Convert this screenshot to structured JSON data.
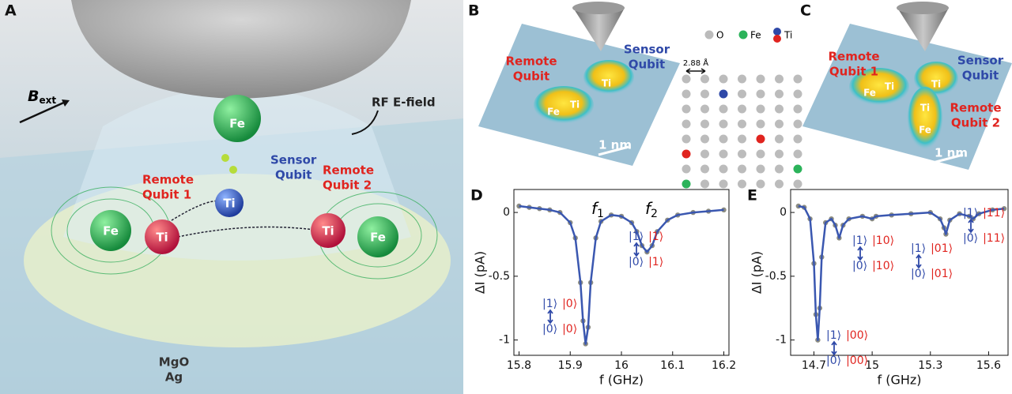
{
  "panel_a": {
    "label": "A",
    "b_ext": {
      "main": "B",
      "sub": "ext"
    },
    "rf": "RF E-field",
    "fe_top": "Fe",
    "sensor": [
      "Sensor",
      "Qubit"
    ],
    "sensor_atom": "Ti",
    "remote1": [
      "Remote",
      "Qubit 1"
    ],
    "remote2": [
      "Remote",
      "Qubit 2"
    ],
    "atoms": [
      "Fe",
      "Ti",
      "Ti",
      "Fe"
    ],
    "substrate": [
      "MgO",
      "Ag"
    ]
  },
  "panel_b": {
    "label": "B",
    "remote": [
      "Remote",
      "Qubit"
    ],
    "sensor": [
      "Sensor",
      "Qubit"
    ],
    "atoms": [
      "Fe",
      "Ti",
      "Ti"
    ],
    "scale": "1 nm"
  },
  "lattice": {
    "legend": [
      "O",
      "Fe",
      "Ti"
    ],
    "spacing": "2.88 Å"
  },
  "panel_c": {
    "label": "C",
    "remote1": [
      "Remote",
      "Qubit 1"
    ],
    "sensor": [
      "Sensor",
      "Qubit"
    ],
    "remote2": [
      "Remote",
      "Qubit 2"
    ],
    "atoms": [
      "Fe",
      "Ti",
      "Ti",
      "Ti",
      "Fe"
    ],
    "scale": "1 nm"
  },
  "chart_data": [
    {
      "type": "line",
      "label": "D",
      "xlabel": "f (GHz)",
      "ylabel": "ΔI (pA)",
      "color": "#3a57b0",
      "marker_color": "#8c8c82",
      "x": [
        15.8,
        15.82,
        15.84,
        15.86,
        15.88,
        15.9,
        15.91,
        15.92,
        15.925,
        15.93,
        15.935,
        15.94,
        15.95,
        15.96,
        15.98,
        16.0,
        16.02,
        16.03,
        16.04,
        16.05,
        16.06,
        16.07,
        16.09,
        16.11,
        16.14,
        16.17,
        16.2
      ],
      "values": [
        0.05,
        0.04,
        0.03,
        0.02,
        0.0,
        -0.08,
        -0.2,
        -0.55,
        -0.85,
        -1.03,
        -0.9,
        -0.55,
        -0.2,
        -0.07,
        -0.02,
        -0.03,
        -0.08,
        -0.15,
        -0.26,
        -0.31,
        -0.26,
        -0.15,
        -0.06,
        -0.02,
        0.0,
        0.01,
        0.02
      ],
      "xlim": [
        15.79,
        16.21
      ],
      "ylim": [
        -1.12,
        0.18
      ],
      "xticks": [
        15.8,
        15.9,
        16,
        16.1,
        16.2
      ],
      "yticks": [
        0,
        -0.5,
        -1
      ],
      "peak_labels": [
        {
          "main": "f",
          "sub": "1"
        },
        {
          "main": "f",
          "sub": "2"
        }
      ],
      "annotations": [
        {
          "top": [
            "|1⟩",
            "|0⟩"
          ],
          "bottom": [
            "|0⟩",
            "|0⟩"
          ]
        },
        {
          "top": [
            "|1⟩",
            "|1⟩"
          ],
          "bottom": [
            "|0⟩",
            "|1⟩"
          ]
        }
      ]
    },
    {
      "type": "line",
      "label": "E",
      "xlabel": "f (GHz)",
      "ylabel": "ΔI (pA)",
      "color": "#3a57b0",
      "marker_color": "#8c8c82",
      "x": [
        14.62,
        14.65,
        14.68,
        14.7,
        14.71,
        14.72,
        14.73,
        14.74,
        14.76,
        14.79,
        14.81,
        14.83,
        14.85,
        14.88,
        14.95,
        15.0,
        15.02,
        15.1,
        15.2,
        15.3,
        15.35,
        15.37,
        15.38,
        15.4,
        15.45,
        15.5,
        15.52,
        15.55,
        15.62,
        15.68
      ],
      "values": [
        0.05,
        0.04,
        -0.05,
        -0.4,
        -0.8,
        -1.0,
        -0.75,
        -0.35,
        -0.08,
        -0.05,
        -0.1,
        -0.2,
        -0.1,
        -0.05,
        -0.03,
        -0.05,
        -0.03,
        -0.02,
        -0.01,
        0.0,
        -0.05,
        -0.12,
        -0.17,
        -0.06,
        -0.01,
        -0.03,
        -0.05,
        -0.01,
        0.02,
        0.03
      ],
      "xlim": [
        14.58,
        15.7
      ],
      "ylim": [
        -1.12,
        0.18
      ],
      "xticks": [
        14.7,
        15,
        15.3,
        15.6
      ],
      "yticks": [
        0,
        -0.5,
        -1
      ],
      "annotations": [
        {
          "top": [
            "|1⟩",
            "|00⟩"
          ],
          "bottom": [
            "|0⟩",
            "|00⟩"
          ]
        },
        {
          "top": [
            "|1⟩",
            "|10⟩"
          ],
          "bottom": [
            "|0⟩",
            "|10⟩"
          ]
        },
        {
          "top": [
            "|1⟩",
            "|01⟩"
          ],
          "bottom": [
            "|0⟩",
            "|01⟩"
          ]
        },
        {
          "top": [
            "|1⟩",
            "|11⟩"
          ],
          "bottom": [
            "|0⟩",
            "|11⟩"
          ]
        }
      ]
    }
  ]
}
